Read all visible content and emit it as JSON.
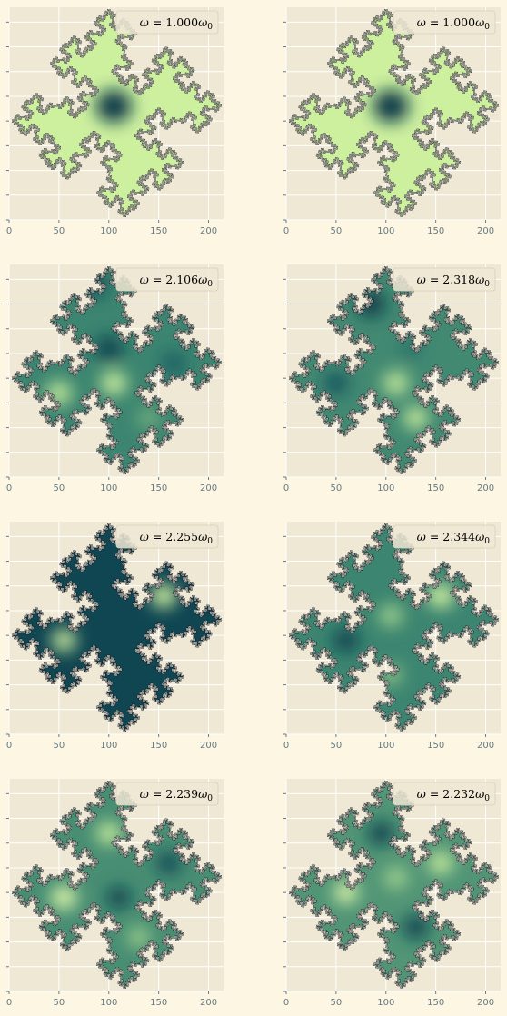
{
  "figure": {
    "background": "#fdf6e3",
    "axes_background": "#eee8d5",
    "grid_color": "#ffffff",
    "tick_label_color": "#657b83",
    "colormap": [
      "#0b3a4a",
      "#165a61",
      "#2f7a6c",
      "#5fa07a",
      "#95c98b",
      "#c9ee9c",
      "#e4f9ae"
    ],
    "fractal_outline": "#111111"
  },
  "chart_data": [
    {
      "type": "heatmap",
      "row": 0,
      "col": 0,
      "legend": "ω = 1.000ω₀",
      "legend_parts": {
        "omega": "ω",
        "eq": " = ",
        "value": "1.000",
        "unit": "ω",
        "sub": "0"
      },
      "xlim": [
        0,
        215
      ],
      "ylim": [
        0,
        215
      ],
      "xticks": [
        "0",
        "50",
        "100",
        "150",
        "200"
      ],
      "grid": true,
      "legend_position": "top-right",
      "base_level": 0.86,
      "features": [
        {
          "x": 105,
          "y": 115,
          "level": 0.0,
          "spread": 18
        }
      ]
    },
    {
      "type": "heatmap",
      "row": 0,
      "col": 1,
      "legend": "ω = 1.000ω₀",
      "legend_parts": {
        "omega": "ω",
        "eq": " = ",
        "value": "1.000",
        "unit": "ω",
        "sub": "0"
      },
      "xlim": [
        0,
        215
      ],
      "ylim": [
        0,
        215
      ],
      "xticks": [
        "0",
        "50",
        "100",
        "150",
        "200"
      ],
      "grid": true,
      "legend_position": "top-right",
      "base_level": 0.86,
      "features": [
        {
          "x": 105,
          "y": 115,
          "level": 0.0,
          "spread": 18
        }
      ]
    },
    {
      "type": "heatmap",
      "row": 1,
      "col": 0,
      "legend": "ω = 2.106ω₀",
      "legend_parts": {
        "omega": "ω",
        "eq": " = ",
        "value": "2.106",
        "unit": "ω",
        "sub": "0"
      },
      "xlim": [
        0,
        215
      ],
      "ylim": [
        0,
        215
      ],
      "xticks": [
        "0",
        "50",
        "100",
        "150",
        "200"
      ],
      "grid": true,
      "legend_position": "top-right",
      "base_level": 0.38,
      "features": [
        {
          "x": 85,
          "y": 195,
          "level": 0.1,
          "spread": 14
        },
        {
          "x": 100,
          "y": 130,
          "level": 0.05,
          "spread": 14
        },
        {
          "x": 50,
          "y": 85,
          "level": 0.8,
          "spread": 13
        },
        {
          "x": 105,
          "y": 95,
          "level": 0.85,
          "spread": 13
        },
        {
          "x": 165,
          "y": 115,
          "level": 0.2,
          "spread": 13
        },
        {
          "x": 140,
          "y": 60,
          "level": 0.55,
          "spread": 12
        }
      ]
    },
    {
      "type": "heatmap",
      "row": 1,
      "col": 1,
      "legend": "ω = 2.318ω₀",
      "legend_parts": {
        "omega": "ω",
        "eq": " = ",
        "value": "2.318",
        "unit": "ω",
        "sub": "0"
      },
      "xlim": [
        0,
        215
      ],
      "ylim": [
        0,
        215
      ],
      "xticks": [
        "0",
        "50",
        "100",
        "150",
        "200"
      ],
      "grid": true,
      "legend_position": "top-right",
      "base_level": 0.4,
      "features": [
        {
          "x": 85,
          "y": 175,
          "level": 0.0,
          "spread": 14
        },
        {
          "x": 50,
          "y": 95,
          "level": 0.15,
          "spread": 13
        },
        {
          "x": 110,
          "y": 95,
          "level": 0.8,
          "spread": 13
        },
        {
          "x": 130,
          "y": 60,
          "level": 0.85,
          "spread": 12
        },
        {
          "x": 125,
          "y": 130,
          "level": 0.3,
          "spread": 12
        }
      ]
    },
    {
      "type": "heatmap",
      "row": 2,
      "col": 0,
      "legend": "ω = 2.255ω₀",
      "legend_parts": {
        "omega": "ω",
        "eq": " = ",
        "value": "2.255",
        "unit": "ω",
        "sub": "0"
      },
      "xlim": [
        0,
        215
      ],
      "ylim": [
        0,
        215
      ],
      "xticks": [
        "0",
        "50",
        "100",
        "150",
        "200"
      ],
      "grid": true,
      "legend_position": "top-right",
      "base_level": 0.06,
      "features": [
        {
          "x": 155,
          "y": 140,
          "level": 0.9,
          "spread": 13
        },
        {
          "x": 55,
          "y": 95,
          "level": 0.9,
          "spread": 12
        }
      ]
    },
    {
      "type": "heatmap",
      "row": 2,
      "col": 1,
      "legend": "ω = 2.344ω₀",
      "legend_parts": {
        "omega": "ω",
        "eq": " = ",
        "value": "2.344",
        "unit": "ω",
        "sub": "0"
      },
      "xlim": [
        0,
        215
      ],
      "ylim": [
        0,
        215
      ],
      "xticks": [
        "0",
        "50",
        "100",
        "150",
        "200"
      ],
      "grid": true,
      "legend_position": "top-right",
      "base_level": 0.38,
      "features": [
        {
          "x": 60,
          "y": 95,
          "level": 0.05,
          "spread": 13
        },
        {
          "x": 155,
          "y": 140,
          "level": 0.9,
          "spread": 13
        },
        {
          "x": 105,
          "y": 120,
          "level": 0.7,
          "spread": 12
        },
        {
          "x": 105,
          "y": 60,
          "level": 0.65,
          "spread": 11
        }
      ]
    },
    {
      "type": "heatmap",
      "row": 3,
      "col": 0,
      "legend": "ω = 2.239ω₀",
      "legend_parts": {
        "omega": "ω",
        "eq": " = ",
        "value": "2.239",
        "unit": "ω",
        "sub": "0"
      },
      "xlim": [
        0,
        215
      ],
      "ylim": [
        0,
        215
      ],
      "xticks": [
        "0",
        "50",
        "100",
        "150",
        "200"
      ],
      "grid": true,
      "legend_position": "top-right",
      "base_level": 0.42,
      "features": [
        {
          "x": 55,
          "y": 95,
          "level": 0.95,
          "spread": 13
        },
        {
          "x": 160,
          "y": 130,
          "level": 0.1,
          "spread": 13
        },
        {
          "x": 110,
          "y": 95,
          "level": 0.05,
          "spread": 12
        },
        {
          "x": 100,
          "y": 160,
          "level": 0.85,
          "spread": 12
        },
        {
          "x": 130,
          "y": 55,
          "level": 0.7,
          "spread": 11
        }
      ]
    },
    {
      "type": "heatmap",
      "row": 3,
      "col": 1,
      "legend": "ω = 2.232ω₀",
      "legend_parts": {
        "omega": "ω",
        "eq": " = ",
        "value": "2.232",
        "unit": "ω",
        "sub": "0"
      },
      "xlim": [
        0,
        215
      ],
      "ylim": [
        0,
        215
      ],
      "xticks": [
        "0",
        "50",
        "100",
        "150",
        "200"
      ],
      "grid": true,
      "legend_position": "top-right",
      "base_level": 0.45,
      "features": [
        {
          "x": 95,
          "y": 160,
          "level": 0.05,
          "spread": 13
        },
        {
          "x": 130,
          "y": 65,
          "level": 0.05,
          "spread": 13
        },
        {
          "x": 60,
          "y": 100,
          "level": 0.95,
          "spread": 12
        },
        {
          "x": 155,
          "y": 130,
          "level": 0.85,
          "spread": 12
        },
        {
          "x": 110,
          "y": 115,
          "level": 0.7,
          "spread": 12
        }
      ]
    }
  ]
}
